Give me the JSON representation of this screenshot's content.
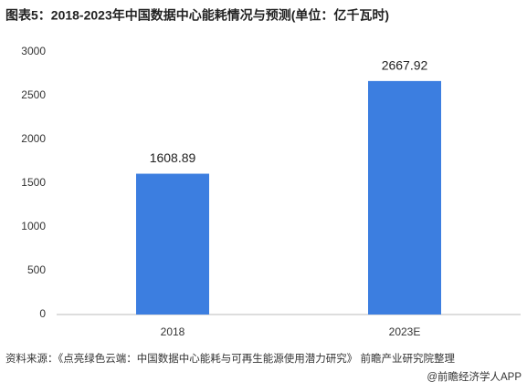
{
  "chart_data": {
    "type": "bar",
    "title": "图表5：2018-2023年中国数据中心能耗情况与预测(单位：亿千瓦时)",
    "categories": [
      "2018",
      "2023E"
    ],
    "values": [
      1608.89,
      2667.92
    ],
    "color": "#3c7ee0",
    "ylim": [
      0,
      3000
    ],
    "yticks": [
      0,
      500,
      1000,
      1500,
      2000,
      2500,
      3000
    ],
    "grid": false,
    "source": "资料来源：《点亮绿色云端：中国数据中心能耗与可再生能源使用潜力研究》 前瞻产业研究院整理",
    "credit": "@前瞻经济学人APP"
  }
}
